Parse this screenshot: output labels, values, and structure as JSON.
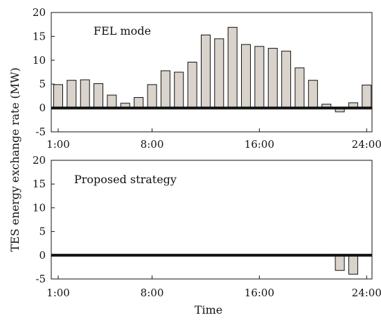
{
  "y_axis_label": "TES energy exchange rate (MW)",
  "x_axis_label": "Time",
  "colors": {
    "bar_fill": "#d9d3cc",
    "bar_stroke": "#111111",
    "zero_line": "#111111"
  },
  "chart_data": [
    {
      "type": "bar",
      "title": "FEL mode",
      "x_tick_labels": [
        "1:00",
        "8:00",
        "16:00",
        "24:00"
      ],
      "x_ticks_at_hour": [
        1,
        8,
        16,
        24
      ],
      "ylim": [
        -5,
        20
      ],
      "y_ticks": [
        -5,
        0,
        5,
        10,
        15,
        20
      ],
      "hours": [
        1,
        2,
        3,
        4,
        5,
        6,
        7,
        8,
        9,
        10,
        11,
        12,
        13,
        14,
        15,
        16,
        17,
        18,
        19,
        20,
        21,
        22,
        23,
        24
      ],
      "values": [
        4.9,
        5.8,
        5.9,
        5.1,
        2.7,
        1.0,
        2.2,
        4.9,
        7.8,
        7.5,
        9.6,
        15.3,
        14.5,
        16.9,
        13.3,
        12.9,
        12.5,
        11.9,
        8.4,
        5.8,
        0.8,
        -0.8,
        1.1,
        4.8
      ]
    },
    {
      "type": "bar",
      "title": "Proposed strategy",
      "x_tick_labels": [
        "1:00",
        "8:00",
        "16:00",
        "24:00"
      ],
      "x_ticks_at_hour": [
        1,
        8,
        16,
        24
      ],
      "ylim": [
        -5,
        20
      ],
      "y_ticks": [
        -5,
        0,
        5,
        10,
        15,
        20
      ],
      "hours": [
        1,
        2,
        3,
        4,
        5,
        6,
        7,
        8,
        9,
        10,
        11,
        12,
        13,
        14,
        15,
        16,
        17,
        18,
        19,
        20,
        21,
        22,
        23,
        24
      ],
      "values": [
        0,
        0,
        0,
        0,
        0,
        0,
        0,
        0,
        0,
        0,
        0,
        0,
        0,
        0,
        0,
        0,
        0,
        0,
        0,
        0,
        0,
        -3.2,
        -4.0,
        0
      ]
    }
  ]
}
